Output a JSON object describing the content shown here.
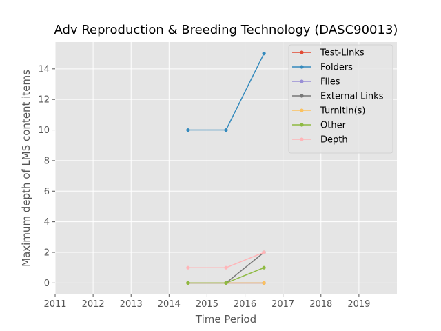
{
  "chart_data": {
    "type": "line",
    "title": "Adv Reproduction & Breeding Technology (DASC90013)",
    "xlabel": "Time Period",
    "ylabel": "Maximum depth of LMS content items",
    "xlim": [
      2011,
      2020
    ],
    "ylim": [
      -0.75,
      15.75
    ],
    "xticks": [
      2011,
      2012,
      2013,
      2014,
      2015,
      2016,
      2017,
      2018,
      2019
    ],
    "yticks": [
      0,
      2,
      4,
      6,
      8,
      10,
      12,
      14
    ],
    "grid": true,
    "legend_position": "top-right",
    "x": [
      2014.5,
      2015.5,
      2016.5
    ],
    "series": [
      {
        "name": "Test-Links",
        "color": "#E24A33",
        "values": [
          0,
          0,
          0
        ]
      },
      {
        "name": "Folders",
        "color": "#348ABD",
        "values": [
          10,
          10,
          15
        ]
      },
      {
        "name": "Files",
        "color": "#988ED5",
        "values": [
          0,
          0,
          0
        ]
      },
      {
        "name": "External Links",
        "color": "#777777",
        "values": [
          0,
          0,
          2
        ]
      },
      {
        "name": "TurnItIn(s)",
        "color": "#FBC15E",
        "values": [
          0,
          0,
          0
        ]
      },
      {
        "name": "Other",
        "color": "#8EBA42",
        "values": [
          0,
          0,
          1
        ]
      },
      {
        "name": "Depth",
        "color": "#FFB5B8",
        "values": [
          1,
          1,
          2
        ]
      }
    ]
  }
}
